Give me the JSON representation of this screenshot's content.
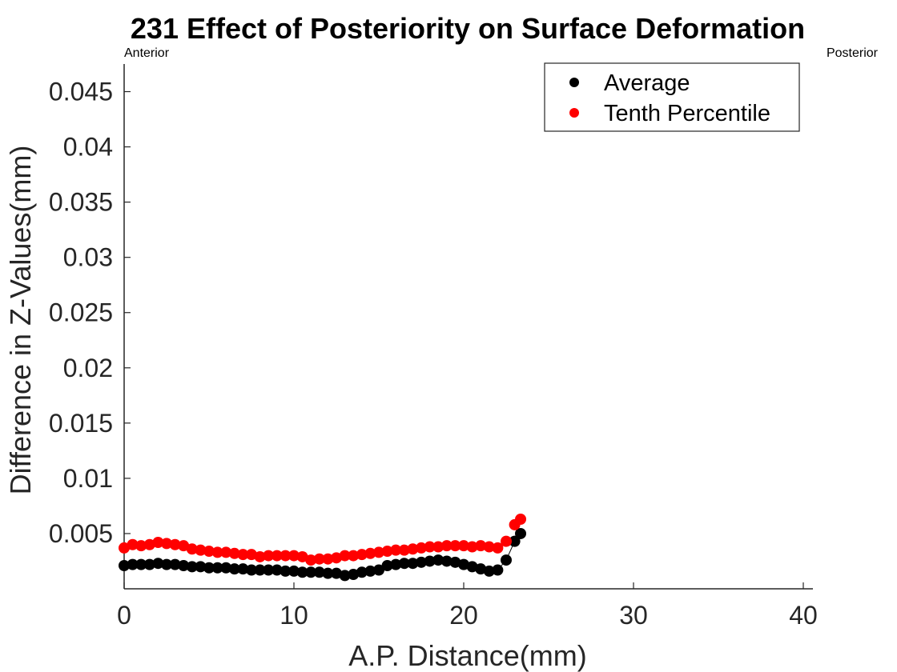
{
  "chart_data": {
    "type": "scatter",
    "title": "231  Effect of Posteriority on Surface Deformation",
    "corner_left": "Anterior",
    "corner_right": "Posterior",
    "xlabel": "A.P. Distance(mm)",
    "ylabel": "Difference in Z-Values(mm)",
    "xlim": [
      0,
      40
    ],
    "ylim": [
      0,
      0.0475
    ],
    "x_ticks": [
      0,
      10,
      20,
      30,
      40
    ],
    "x_tick_labels": [
      "0",
      "10",
      "20",
      "30",
      "40"
    ],
    "y_ticks": [
      0.005,
      0.01,
      0.015,
      0.02,
      0.025,
      0.03,
      0.035,
      0.04,
      0.045
    ],
    "y_tick_labels": [
      "0.005",
      "0.01",
      "0.015",
      "0.02",
      "0.025",
      "0.03",
      "0.035",
      "0.04",
      "0.045"
    ],
    "grid": false,
    "legend_position": "top-right",
    "x": [
      0,
      0.5,
      1,
      1.5,
      2,
      2.5,
      3,
      3.5,
      4,
      4.5,
      5,
      5.5,
      6,
      6.5,
      7,
      7.5,
      8,
      8.5,
      9,
      9.5,
      10,
      10.5,
      11,
      11.5,
      12,
      12.5,
      13,
      13.5,
      14,
      14.5,
      15,
      15.5,
      16,
      16.5,
      17,
      17.5,
      18,
      18.5,
      19,
      19.5,
      20,
      20.5,
      21,
      21.5,
      22,
      22.5,
      23,
      23.35
    ],
    "series": [
      {
        "name": "Average",
        "color": "#000000",
        "connected": true,
        "values": [
          0.0021,
          0.0022,
          0.0022,
          0.0022,
          0.0023,
          0.0022,
          0.0022,
          0.0021,
          0.002,
          0.002,
          0.0019,
          0.0019,
          0.0019,
          0.0018,
          0.0018,
          0.0017,
          0.0017,
          0.0017,
          0.0017,
          0.0016,
          0.0016,
          0.0015,
          0.0015,
          0.0015,
          0.0014,
          0.0014,
          0.0012,
          0.0013,
          0.0015,
          0.0016,
          0.0017,
          0.0021,
          0.0022,
          0.0023,
          0.0023,
          0.0024,
          0.0025,
          0.0026,
          0.0025,
          0.0024,
          0.0022,
          0.002,
          0.0018,
          0.0016,
          0.0017,
          0.0026,
          0.0043,
          0.005
        ]
      },
      {
        "name": "Tenth Percentile",
        "color": "#ff0000",
        "connected": false,
        "values": [
          0.0037,
          0.004,
          0.0039,
          0.004,
          0.0042,
          0.0041,
          0.004,
          0.0039,
          0.0036,
          0.0035,
          0.0034,
          0.0033,
          0.0033,
          0.0032,
          0.0031,
          0.0031,
          0.0029,
          0.003,
          0.003,
          0.003,
          0.003,
          0.0029,
          0.0026,
          0.0027,
          0.0027,
          0.0028,
          0.003,
          0.003,
          0.0031,
          0.0032,
          0.0033,
          0.0034,
          0.0035,
          0.0035,
          0.0036,
          0.0037,
          0.0038,
          0.0038,
          0.0039,
          0.0039,
          0.0039,
          0.0038,
          0.0039,
          0.0038,
          0.0037,
          0.0043,
          0.0058,
          0.0063
        ]
      }
    ]
  }
}
